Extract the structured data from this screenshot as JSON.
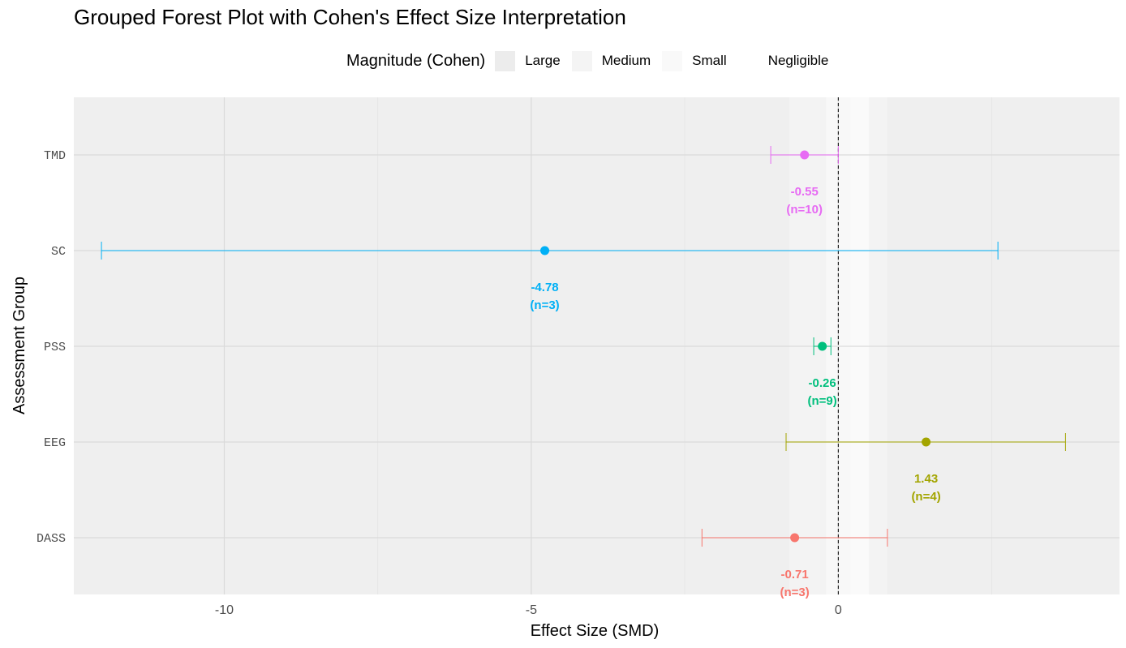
{
  "chart_data": {
    "type": "forest",
    "title": "Grouped Forest Plot with Cohen's Effect Size Interpretation",
    "xlabel": "Effect Size (SMD)",
    "ylabel": "Assessment Group",
    "xlim": [
      -12.45,
      4.58
    ],
    "xticks": [
      -10,
      -5,
      0
    ],
    "xtick_labels": [
      "-10",
      "-5",
      "0"
    ],
    "legend": {
      "title": "Magnitude (Cohen)",
      "position": "top",
      "entries": [
        {
          "label": "Large",
          "color": "#ececec"
        },
        {
          "label": "Medium",
          "color": "#f4f4f4"
        },
        {
          "label": "Small",
          "color": "#f9f9f9"
        },
        {
          "label": "Negligible",
          "color": "#ffffff"
        }
      ]
    },
    "bands": [
      {
        "label": "Large",
        "from": -0.8,
        "to": 0.8,
        "color": "#f4f4f4",
        "opacity": 0.75
      },
      {
        "label": "Medium",
        "from": -0.2,
        "to": 0.5,
        "color": "#f9f9f9",
        "opacity": 0.8
      },
      {
        "label": "Small",
        "from": 0.2,
        "to": 0.5,
        "color": "#fcfcfc",
        "opacity": 0.6
      }
    ],
    "reference_line": 0,
    "groups": [
      {
        "name": "TMD",
        "estimate": -0.55,
        "lower": -1.1,
        "upper": 0.0,
        "n_label": "(n=10)",
        "est_label": "-0.55",
        "color": "#e76bf3"
      },
      {
        "name": "SC",
        "estimate": -4.78,
        "lower": -12.0,
        "upper": 2.6,
        "n_label": "(n=3)",
        "est_label": "-4.78",
        "color": "#00b0f6"
      },
      {
        "name": "PSS",
        "estimate": -0.26,
        "lower": -0.4,
        "upper": -0.12,
        "n_label": "(n=9)",
        "est_label": "-0.26",
        "color": "#00bf7d"
      },
      {
        "name": "EEG",
        "estimate": 1.43,
        "lower": -0.85,
        "upper": 3.7,
        "n_label": "(n=4)",
        "est_label": "1.43",
        "color": "#a3a500"
      },
      {
        "name": "DASS",
        "estimate": -0.71,
        "lower": -2.22,
        "upper": 0.8,
        "n_label": "(n=3)",
        "est_label": "-0.71",
        "color": "#f8766d"
      }
    ],
    "grid": true
  }
}
